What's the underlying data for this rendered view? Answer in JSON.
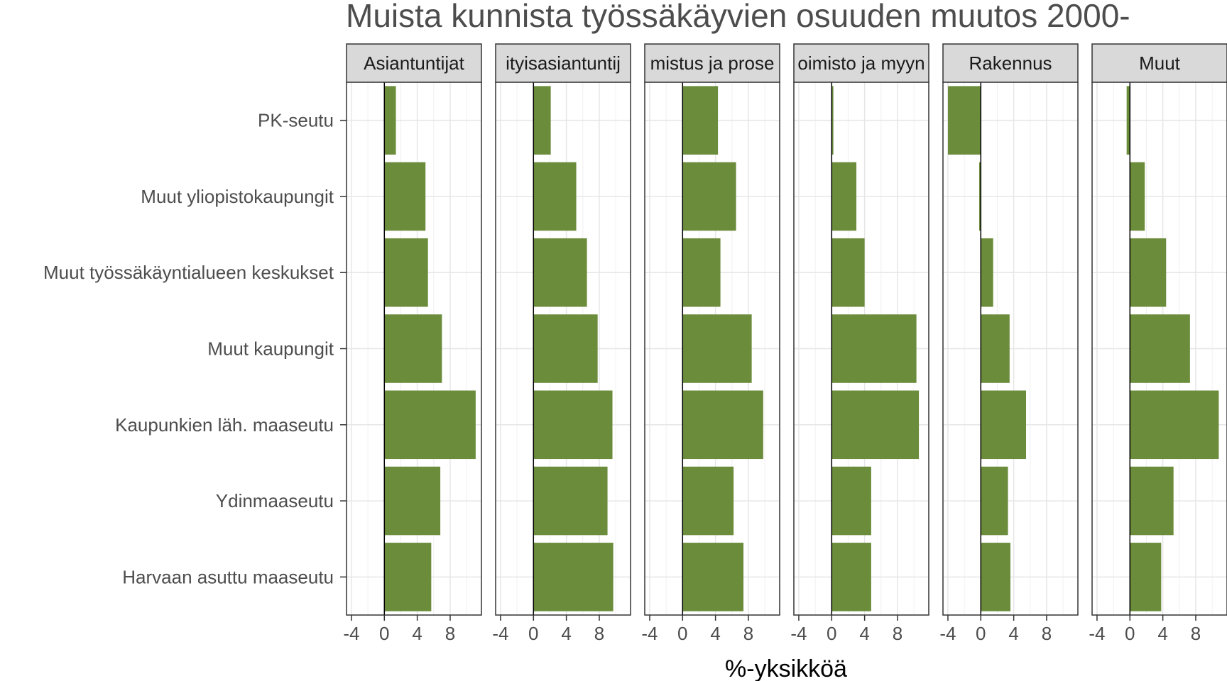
{
  "chart_data": {
    "type": "bar",
    "orientation": "horizontal",
    "title": "Muista kunnista työssäkäyvien osuuden muutos 2000-",
    "xlabel": "%-yksikköä",
    "ylabel": "",
    "xlim": [
      -4.6,
      11.8
    ],
    "x_ticks": [
      -4,
      0,
      4,
      8
    ],
    "x_tick_labels": [
      "-4",
      "0",
      "4",
      "8"
    ],
    "grid": true,
    "legend": "none",
    "bar_color": "#6b8c3b",
    "categories": [
      "PK-seutu",
      "Muut yliopistokaupungit",
      "Muut työssäkäyntialueen keskukset",
      "Muut kaupungit",
      "Kaupunkien läh. maaseutu",
      "Ydinmaaseutu",
      "Harvaan asuttu maaseutu"
    ],
    "facets": [
      {
        "strip_label": "Asiantuntijat",
        "values": [
          1.4,
          5.0,
          5.3,
          7.0,
          11.1,
          6.8,
          5.7
        ]
      },
      {
        "strip_label": "ityisasiantuntij",
        "values": [
          2.1,
          5.2,
          6.5,
          7.8,
          9.6,
          9.0,
          9.7
        ]
      },
      {
        "strip_label": "mistus ja prose",
        "values": [
          4.3,
          6.5,
          4.6,
          8.4,
          9.8,
          6.2,
          7.4
        ]
      },
      {
        "strip_label": "oimisto ja myyn",
        "values": [
          0.2,
          3.0,
          4.0,
          10.3,
          10.6,
          4.8,
          4.8
        ]
      },
      {
        "strip_label": "Rakennus",
        "values": [
          -4.0,
          -0.2,
          1.5,
          3.5,
          5.5,
          3.3,
          3.6
        ]
      },
      {
        "strip_label": "Muut",
        "values": [
          -0.4,
          1.8,
          4.4,
          7.3,
          10.8,
          5.3,
          3.8
        ]
      }
    ]
  }
}
